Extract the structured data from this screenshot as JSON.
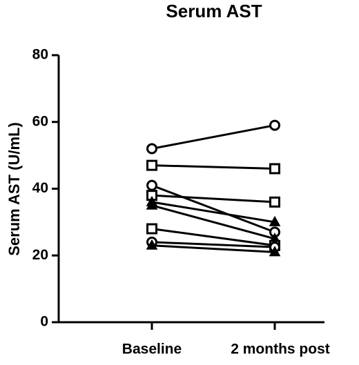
{
  "chart_data": {
    "type": "line",
    "title": "Serum AST",
    "y_label": "Serum AST (U/mL)",
    "categories": [
      "Baseline",
      "2 months post"
    ],
    "ylim": [
      0,
      80
    ],
    "yticks": [
      0,
      20,
      40,
      60,
      80
    ],
    "series": [
      {
        "marker": "circle",
        "color": "#000000",
        "values": [
          52,
          59
        ]
      },
      {
        "marker": "square",
        "color": "#000000",
        "values": [
          47,
          46
        ]
      },
      {
        "marker": "circle",
        "color": "#000000",
        "values": [
          41,
          27
        ]
      },
      {
        "marker": "square",
        "color": "#000000",
        "values": [
          38,
          36
        ]
      },
      {
        "marker": "triangle",
        "color": "#000000",
        "values": [
          36,
          30
        ]
      },
      {
        "marker": "triangle",
        "color": "#000000",
        "values": [
          35,
          25
        ]
      },
      {
        "marker": "square",
        "color": "#000000",
        "values": [
          28,
          23
        ]
      },
      {
        "marker": "circle",
        "color": "#000000",
        "values": [
          24,
          22.5
        ]
      },
      {
        "marker": "triangle",
        "color": "#000000",
        "values": [
          23,
          21
        ]
      }
    ]
  }
}
